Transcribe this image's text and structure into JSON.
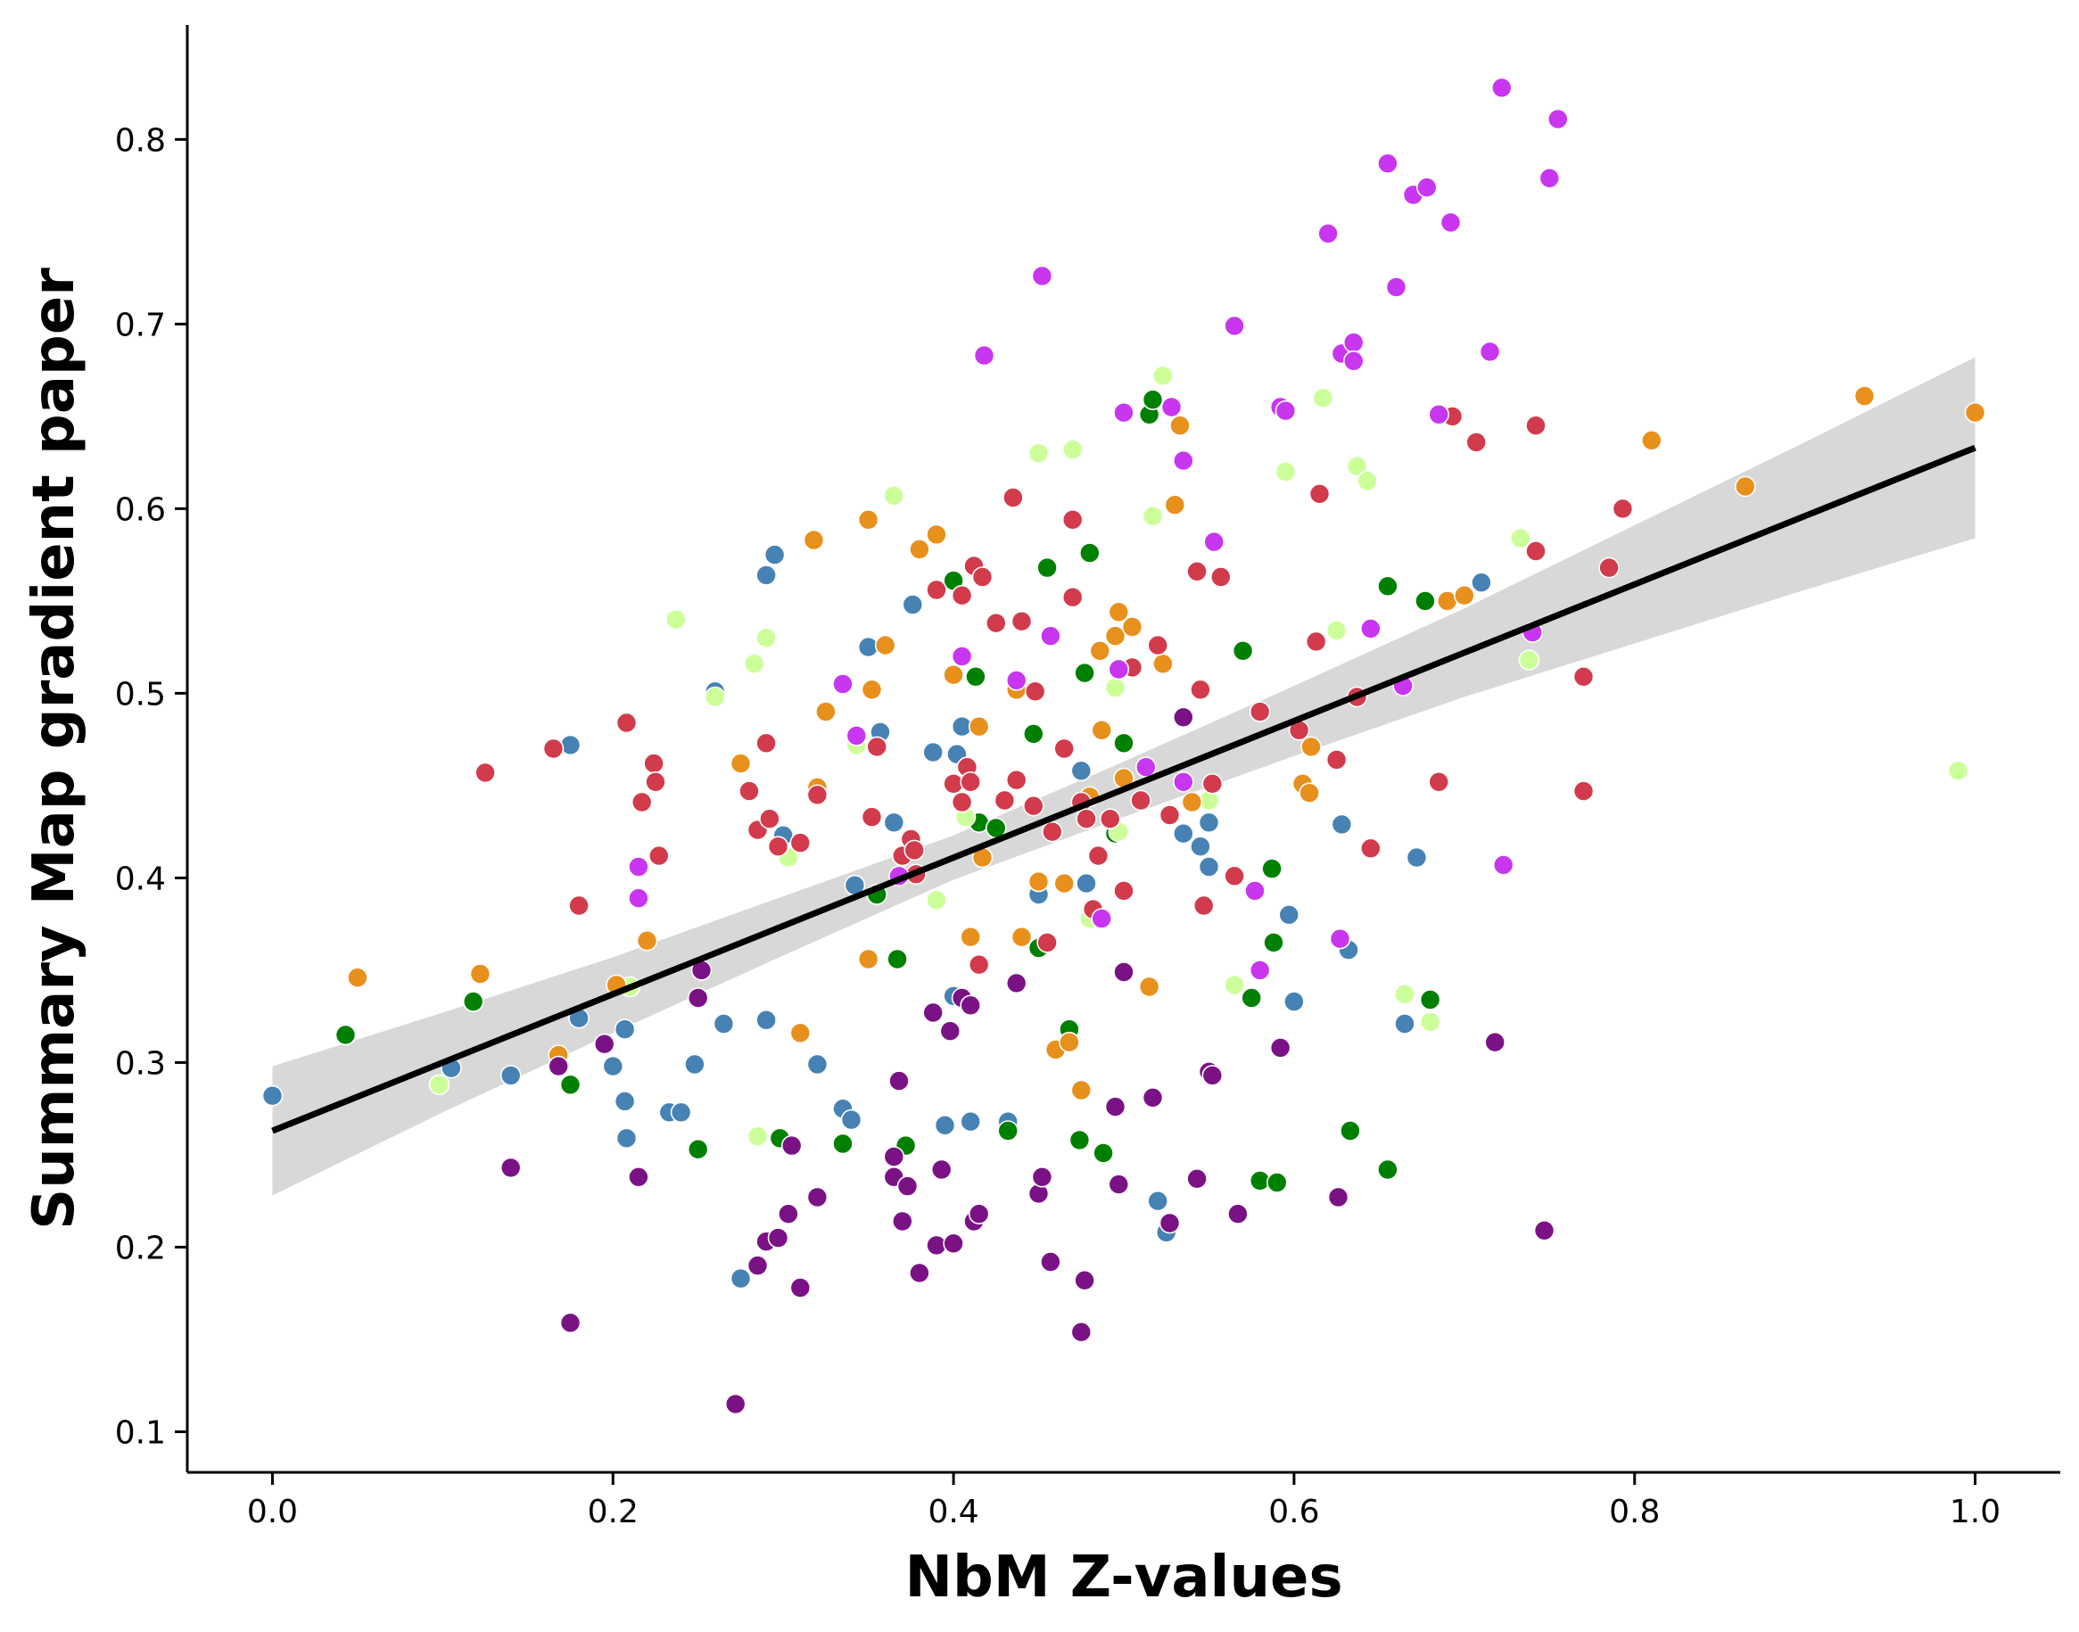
{
  "chart_data": {
    "type": "scatter",
    "title": "",
    "xlabel": "NbM Z-values",
    "ylabel": "Summary Map gradient paper",
    "xlim": [
      -0.05,
      1.05
    ],
    "ylim": [
      0.078,
      0.862
    ],
    "xticks": [
      "0.0",
      "0.2",
      "0.4",
      "0.6",
      "0.8",
      "1.0"
    ],
    "yticks": [
      "0.1",
      "0.2",
      "0.3",
      "0.4",
      "0.5",
      "0.6",
      "0.7",
      "0.8"
    ],
    "grid": false,
    "legend": "none",
    "regression": {
      "x": [
        0.0,
        0.1,
        0.2,
        0.3,
        0.4,
        0.5,
        0.6,
        0.7,
        0.8,
        0.9,
        1.0
      ],
      "y": [
        0.263,
        0.3,
        0.337,
        0.374,
        0.411,
        0.448,
        0.485,
        0.522,
        0.559,
        0.596,
        0.633
      ],
      "ci_lower": [
        0.228,
        0.273,
        0.316,
        0.358,
        0.399,
        0.433,
        0.466,
        0.498,
        0.527,
        0.556,
        0.584
      ],
      "ci_upper": [
        0.298,
        0.327,
        0.357,
        0.39,
        0.423,
        0.463,
        0.504,
        0.546,
        0.591,
        0.636,
        0.682
      ],
      "color": "#000000",
      "band_color": "#d8d8d8"
    },
    "series": [
      {
        "color": "#4682b4",
        "x": [
          0.0,
          0.105,
          0.14,
          0.175,
          0.18,
          0.2,
          0.207,
          0.207,
          0.208,
          0.233,
          0.24,
          0.248,
          0.26,
          0.265,
          0.275,
          0.29,
          0.29,
          0.295,
          0.3,
          0.32,
          0.335,
          0.34,
          0.342,
          0.35,
          0.357,
          0.365,
          0.376,
          0.388,
          0.395,
          0.4,
          0.402,
          0.405,
          0.41,
          0.432,
          0.45,
          0.475,
          0.478,
          0.52,
          0.525,
          0.535,
          0.545,
          0.55,
          0.55,
          0.597,
          0.6,
          0.628,
          0.632,
          0.665,
          0.672,
          0.71
        ],
        "y": [
          0.282,
          0.297,
          0.293,
          0.472,
          0.324,
          0.298,
          0.318,
          0.279,
          0.259,
          0.273,
          0.273,
          0.299,
          0.501,
          0.321,
          0.183,
          0.323,
          0.564,
          0.575,
          0.423,
          0.299,
          0.275,
          0.269,
          0.396,
          0.525,
          0.479,
          0.43,
          0.548,
          0.468,
          0.266,
          0.336,
          0.467,
          0.482,
          0.268,
          0.268,
          0.391,
          0.458,
          0.397,
          0.225,
          0.208,
          0.424,
          0.417,
          0.43,
          0.406,
          0.38,
          0.333,
          0.429,
          0.361,
          0.321,
          0.411,
          0.56
        ]
      },
      {
        "color": "#008000",
        "x": [
          0.043,
          0.118,
          0.175,
          0.25,
          0.298,
          0.335,
          0.355,
          0.367,
          0.372,
          0.4,
          0.413,
          0.415,
          0.425,
          0.432,
          0.447,
          0.45,
          0.455,
          0.468,
          0.474,
          0.477,
          0.48,
          0.488,
          0.495,
          0.5,
          0.515,
          0.517,
          0.57,
          0.575,
          0.58,
          0.587,
          0.588,
          0.59,
          0.633,
          0.655,
          0.655,
          0.677,
          0.68
        ],
        "y": [
          0.315,
          0.333,
          0.288,
          0.253,
          0.259,
          0.256,
          0.391,
          0.356,
          0.255,
          0.561,
          0.509,
          0.43,
          0.427,
          0.263,
          0.478,
          0.362,
          0.568,
          0.318,
          0.258,
          0.511,
          0.576,
          0.251,
          0.424,
          0.473,
          0.651,
          0.659,
          0.523,
          0.335,
          0.236,
          0.405,
          0.365,
          0.235,
          0.263,
          0.558,
          0.242,
          0.55,
          0.334
        ]
      },
      {
        "color": "#ccff99",
        "x": [
          0.098,
          0.21,
          0.237,
          0.26,
          0.283,
          0.285,
          0.29,
          0.303,
          0.343,
          0.365,
          0.39,
          0.407,
          0.45,
          0.47,
          0.48,
          0.495,
          0.497,
          0.517,
          0.523,
          0.55,
          0.565,
          0.595,
          0.617,
          0.625,
          0.637,
          0.643,
          0.665,
          0.68,
          0.733,
          0.738,
          0.99
        ],
        "y": [
          0.288,
          0.341,
          0.54,
          0.498,
          0.516,
          0.26,
          0.53,
          0.411,
          0.472,
          0.607,
          0.388,
          0.433,
          0.63,
          0.632,
          0.378,
          0.503,
          0.425,
          0.596,
          0.672,
          0.442,
          0.342,
          0.62,
          0.66,
          0.534,
          0.623,
          0.615,
          0.337,
          0.322,
          0.584,
          0.518,
          0.458
        ]
      },
      {
        "color": "#e8901c",
        "x": [
          0.05,
          0.122,
          0.168,
          0.202,
          0.22,
          0.275,
          0.31,
          0.318,
          0.32,
          0.325,
          0.35,
          0.35,
          0.352,
          0.36,
          0.38,
          0.39,
          0.4,
          0.41,
          0.415,
          0.417,
          0.437,
          0.44,
          0.45,
          0.46,
          0.465,
          0.468,
          0.475,
          0.48,
          0.486,
          0.487,
          0.495,
          0.497,
          0.5,
          0.505,
          0.515,
          0.523,
          0.53,
          0.533,
          0.54,
          0.605,
          0.609,
          0.61,
          0.69,
          0.7,
          0.81,
          0.865,
          0.935,
          1.0
        ],
        "y": [
          0.346,
          0.348,
          0.304,
          0.342,
          0.366,
          0.462,
          0.316,
          0.583,
          0.449,
          0.49,
          0.594,
          0.356,
          0.502,
          0.526,
          0.578,
          0.586,
          0.51,
          0.368,
          0.482,
          0.411,
          0.502,
          0.368,
          0.398,
          0.307,
          0.397,
          0.311,
          0.285,
          0.444,
          0.523,
          0.48,
          0.531,
          0.544,
          0.454,
          0.536,
          0.341,
          0.516,
          0.602,
          0.645,
          0.441,
          0.451,
          0.446,
          0.471,
          0.55,
          0.553,
          0.637,
          0.612,
          0.661,
          0.652
        ]
      },
      {
        "color": "#d13b4c",
        "x": [
          0.125,
          0.165,
          0.18,
          0.208,
          0.217,
          0.224,
          0.225,
          0.227,
          0.28,
          0.285,
          0.29,
          0.292,
          0.297,
          0.31,
          0.32,
          0.352,
          0.355,
          0.37,
          0.375,
          0.377,
          0.378,
          0.39,
          0.4,
          0.405,
          0.405,
          0.408,
          0.41,
          0.412,
          0.415,
          0.417,
          0.425,
          0.43,
          0.435,
          0.437,
          0.44,
          0.447,
          0.448,
          0.455,
          0.458,
          0.465,
          0.47,
          0.47,
          0.475,
          0.478,
          0.482,
          0.485,
          0.492,
          0.5,
          0.505,
          0.51,
          0.52,
          0.527,
          0.543,
          0.545,
          0.547,
          0.552,
          0.557,
          0.565,
          0.58,
          0.603,
          0.613,
          0.615,
          0.625,
          0.637,
          0.645,
          0.685,
          0.693,
          0.707,
          0.742,
          0.742,
          0.77,
          0.77,
          0.785,
          0.793
        ],
        "y": [
          0.457,
          0.47,
          0.385,
          0.484,
          0.441,
          0.462,
          0.452,
          0.412,
          0.447,
          0.426,
          0.473,
          0.432,
          0.417,
          0.419,
          0.445,
          0.433,
          0.471,
          0.412,
          0.421,
          0.415,
          0.402,
          0.556,
          0.451,
          0.441,
          0.553,
          0.46,
          0.452,
          0.569,
          0.353,
          0.563,
          0.538,
          0.442,
          0.606,
          0.453,
          0.539,
          0.439,
          0.501,
          0.365,
          0.425,
          0.47,
          0.594,
          0.552,
          0.441,
          0.432,
          0.383,
          0.412,
          0.432,
          0.393,
          0.514,
          0.442,
          0.526,
          0.434,
          0.566,
          0.502,
          0.385,
          0.451,
          0.563,
          0.401,
          0.49,
          0.48,
          0.528,
          0.608,
          0.464,
          0.498,
          0.416,
          0.452,
          0.65,
          0.636,
          0.645,
          0.577,
          0.509,
          0.447,
          0.568,
          0.6
        ]
      },
      {
        "color": "#7a1286",
        "x": [
          0.14,
          0.168,
          0.175,
          0.195,
          0.215,
          0.25,
          0.252,
          0.272,
          0.285,
          0.29,
          0.297,
          0.303,
          0.305,
          0.31,
          0.32,
          0.365,
          0.365,
          0.368,
          0.37,
          0.373,
          0.38,
          0.388,
          0.39,
          0.393,
          0.398,
          0.4,
          0.405,
          0.41,
          0.412,
          0.415,
          0.437,
          0.45,
          0.452,
          0.457,
          0.475,
          0.477,
          0.495,
          0.497,
          0.5,
          0.517,
          0.527,
          0.535,
          0.543,
          0.55,
          0.552,
          0.567,
          0.592,
          0.626,
          0.718,
          0.747
        ],
        "y": [
          0.243,
          0.298,
          0.159,
          0.31,
          0.238,
          0.335,
          0.35,
          0.115,
          0.19,
          0.203,
          0.205,
          0.218,
          0.255,
          0.178,
          0.227,
          0.238,
          0.249,
          0.29,
          0.214,
          0.233,
          0.186,
          0.327,
          0.201,
          0.242,
          0.317,
          0.202,
          0.335,
          0.331,
          0.214,
          0.218,
          0.343,
          0.229,
          0.238,
          0.192,
          0.154,
          0.182,
          0.276,
          0.234,
          0.349,
          0.281,
          0.213,
          0.487,
          0.237,
          0.295,
          0.293,
          0.218,
          0.308,
          0.227,
          0.311,
          0.209
        ]
      },
      {
        "color": "#c836f0",
        "x": [
          0.215,
          0.215,
          0.335,
          0.343,
          0.368,
          0.405,
          0.418,
          0.437,
          0.452,
          0.457,
          0.487,
          0.497,
          0.5,
          0.513,
          0.528,
          0.535,
          0.535,
          0.553,
          0.565,
          0.577,
          0.58,
          0.592,
          0.595,
          0.62,
          0.627,
          0.628,
          0.635,
          0.635,
          0.645,
          0.655,
          0.66,
          0.664,
          0.67,
          0.678,
          0.685,
          0.692,
          0.715,
          0.722,
          0.723,
          0.74,
          0.75,
          0.755
        ],
        "y": [
          0.406,
          0.389,
          0.505,
          0.477,
          0.401,
          0.52,
          0.683,
          0.507,
          0.726,
          0.531,
          0.378,
          0.513,
          0.652,
          0.46,
          0.655,
          0.452,
          0.626,
          0.582,
          0.699,
          0.393,
          0.35,
          0.655,
          0.653,
          0.749,
          0.367,
          0.684,
          0.69,
          0.68,
          0.535,
          0.787,
          0.72,
          0.504,
          0.77,
          0.774,
          0.651,
          0.755,
          0.685,
          0.828,
          0.407,
          0.533,
          0.779,
          0.811
        ]
      }
    ]
  }
}
